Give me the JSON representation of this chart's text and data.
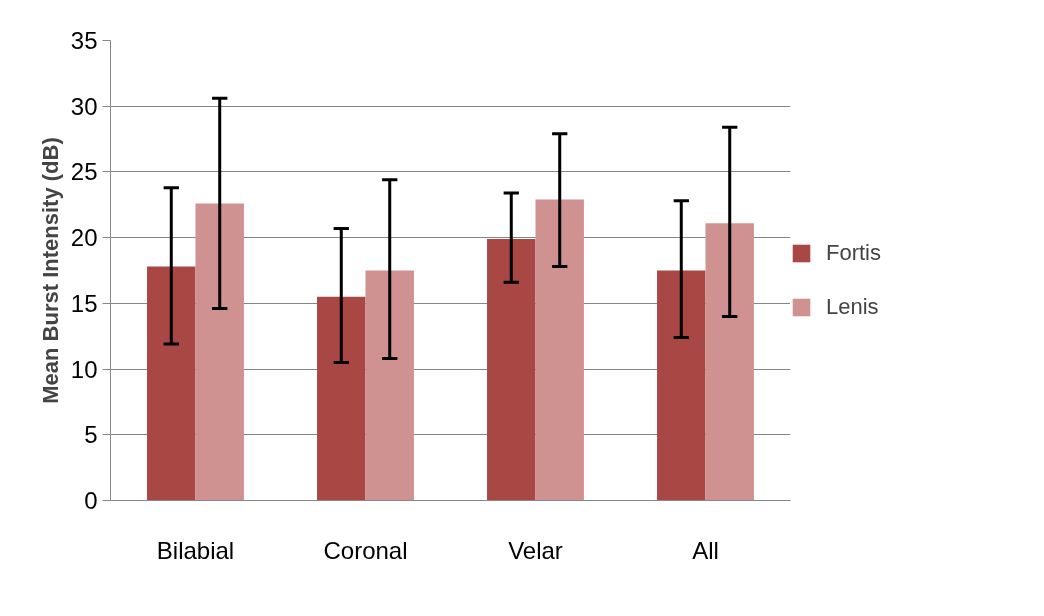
{
  "chart_data": {
    "type": "bar",
    "ylabel": "Mean Burst Intensity (dB)",
    "categories": [
      "Bilabial",
      "Coronal",
      "Velar",
      "All"
    ],
    "series": [
      {
        "name": "Fortis",
        "color": "#a84744",
        "values": [
          17.8,
          15.5,
          19.9,
          17.5
        ],
        "errors": [
          [
            11.9,
            23.8
          ],
          [
            10.5,
            20.7
          ],
          [
            16.6,
            23.4
          ],
          [
            12.4,
            22.8
          ]
        ]
      },
      {
        "name": "Lenis",
        "color": "#d09291",
        "values": [
          22.6,
          17.5,
          22.9,
          21.1
        ],
        "errors": [
          [
            14.6,
            30.6
          ],
          [
            10.8,
            24.4
          ],
          [
            17.8,
            27.9
          ],
          [
            14.0,
            28.4
          ]
        ]
      }
    ],
    "ylim": [
      0,
      35
    ],
    "yticks": [
      0,
      5,
      10,
      15,
      20,
      25,
      30,
      35
    ],
    "grid": "y",
    "legend": "right"
  }
}
